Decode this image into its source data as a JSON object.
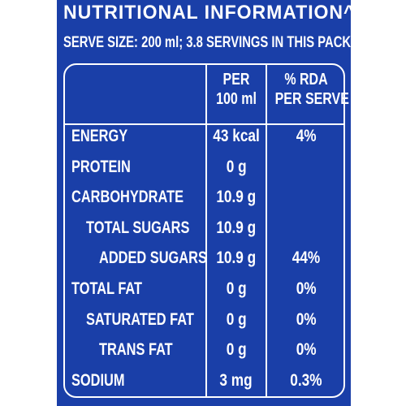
{
  "panel": {
    "title": "NUTRITIONAL INFORMATION^",
    "serve_size": "SERVE SIZE: 200 ml; 3.8 SERVINGS IN THIS PACK",
    "background_color": "#1a3fa8"
  },
  "table": {
    "header_per_line1": "PER",
    "header_per_line2": "100 ml",
    "header_rda_line1": "% RDA",
    "header_rda_line2": "PER SERVE",
    "rows": [
      {
        "nutrient": "ENERGY",
        "per_100ml": "43 kcal",
        "rda": "4%",
        "indent": 0
      },
      {
        "nutrient": "PROTEIN",
        "per_100ml": "0 g",
        "rda": "",
        "indent": 0
      },
      {
        "nutrient": "CARBOHYDRATE",
        "per_100ml": "10.9 g",
        "rda": "",
        "indent": 0
      },
      {
        "nutrient": "TOTAL SUGARS",
        "per_100ml": "10.9 g",
        "rda": "",
        "indent": 1
      },
      {
        "nutrient": "ADDED SUGARS",
        "per_100ml": "10.9 g",
        "rda": "44%",
        "indent": 2
      },
      {
        "nutrient": "TOTAL FAT",
        "per_100ml": "0 g",
        "rda": "0%",
        "indent": 0
      },
      {
        "nutrient": "SATURATED FAT",
        "per_100ml": "0 g",
        "rda": "0%",
        "indent": 1
      },
      {
        "nutrient": "TRANS FAT",
        "per_100ml": "0 g",
        "rda": "0%",
        "indent": 2
      },
      {
        "nutrient": "SODIUM",
        "per_100ml": "3 mg",
        "rda": "0.3%",
        "indent": 0
      }
    ]
  }
}
